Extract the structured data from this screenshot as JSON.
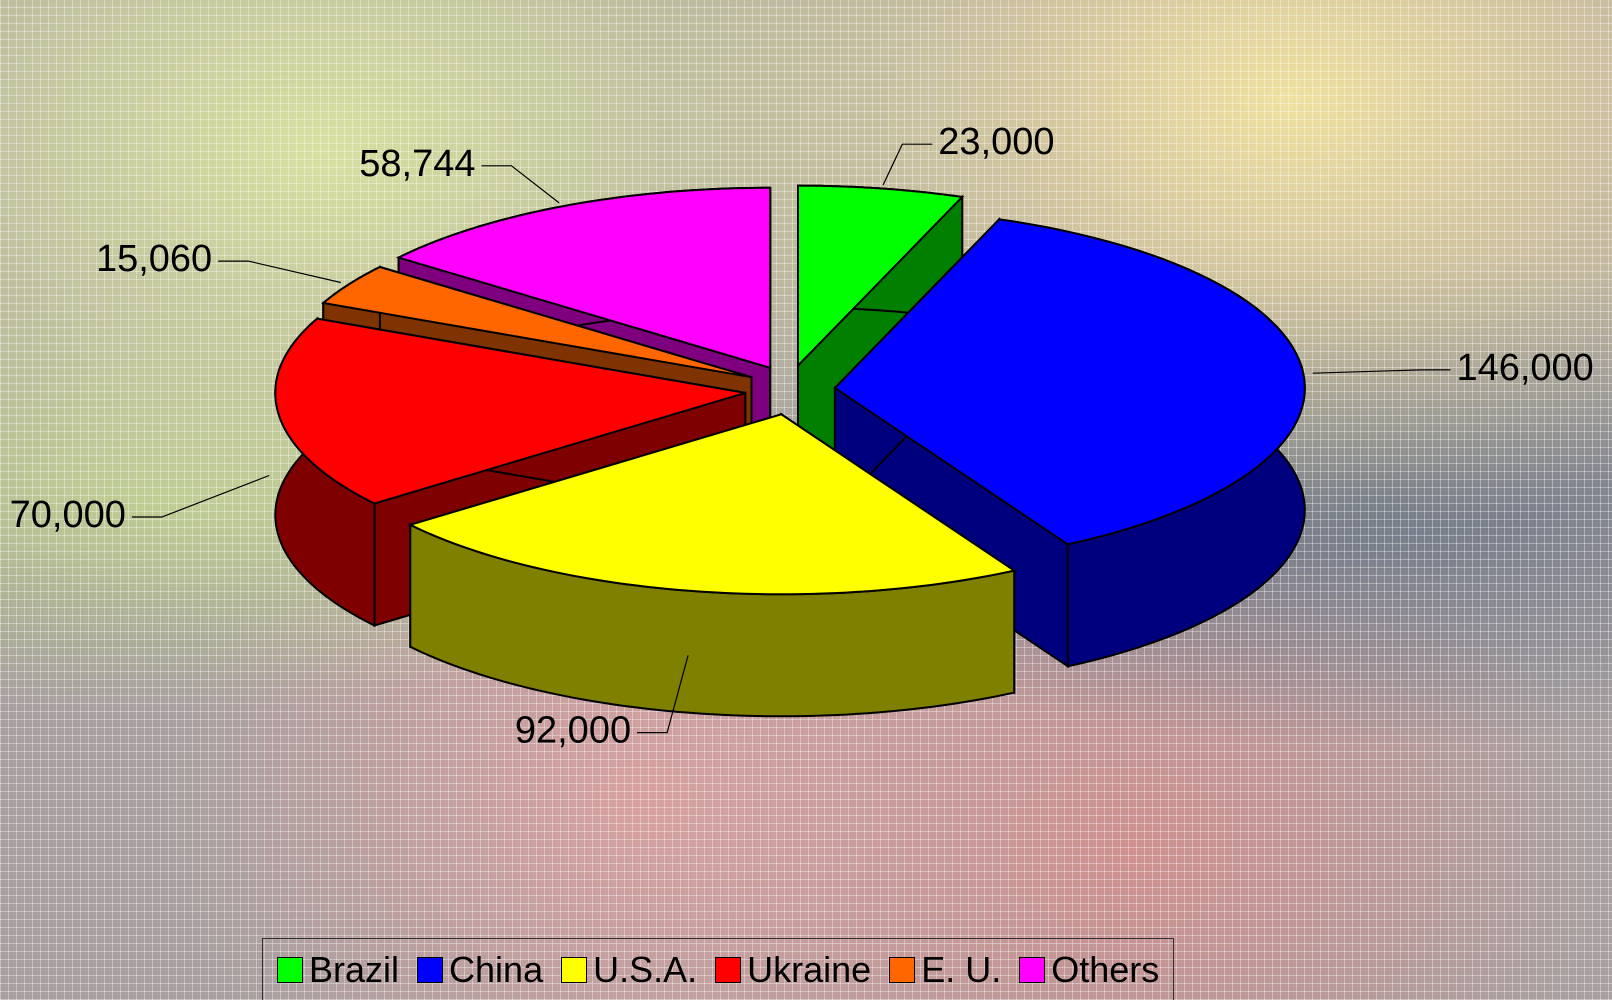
{
  "chart_data": {
    "type": "pie3d",
    "categories": [
      "Brazil",
      "China",
      "U.S.A.",
      "Ukraine",
      "E. U.",
      "Others"
    ],
    "values": [
      23000,
      146000,
      92000,
      70000,
      15060,
      58744
    ],
    "value_labels": [
      "23,000",
      "146,000",
      "92,000",
      "70,000",
      "15,060",
      "58,744"
    ],
    "colors": [
      "#00ff00",
      "#0000ff",
      "#ffff00",
      "#ff0000",
      "#ff6600",
      "#ff00ff"
    ],
    "legend": "bottom"
  }
}
